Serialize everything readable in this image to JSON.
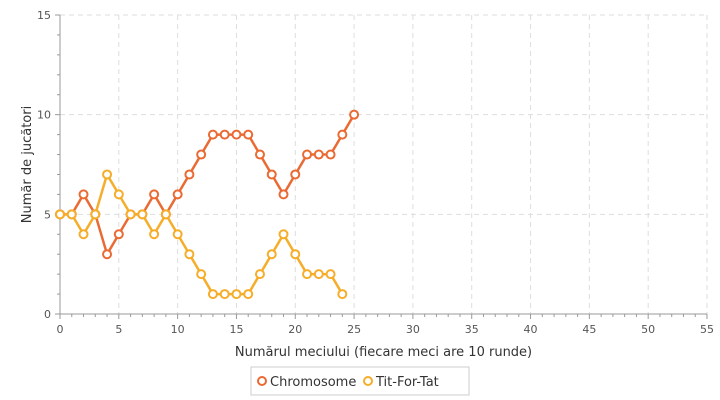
{
  "chart_data": {
    "type": "line",
    "title": "",
    "xlabel": "Numărul meciului (fiecare meci are 10 runde)",
    "ylabel": "Număr de jucători",
    "xlim": [
      0,
      55
    ],
    "ylim": [
      0,
      15
    ],
    "x_ticks": [
      "0",
      "5",
      "10",
      "15",
      "20",
      "25",
      "30",
      "35",
      "40",
      "45",
      "50",
      "55"
    ],
    "y_ticks": [
      "0",
      "5",
      "10",
      "15"
    ],
    "grid": true,
    "legend_position": "bottom-center",
    "series": [
      {
        "name": "Chromosome",
        "color": "#ea6a33",
        "x": [
          0,
          1,
          2,
          3,
          4,
          5,
          6,
          7,
          8,
          9,
          10,
          11,
          12,
          13,
          14,
          15,
          16,
          17,
          18,
          19,
          20,
          21,
          22,
          23,
          24,
          25
        ],
        "y": [
          5,
          5,
          6,
          5,
          3,
          4,
          5,
          5,
          6,
          5,
          6,
          7,
          8,
          9,
          9,
          9,
          9,
          8,
          7,
          6,
          7,
          8,
          8,
          8,
          9,
          10
        ]
      },
      {
        "name": "Tit-For-Tat",
        "color": "#f5ad2a",
        "x": [
          0,
          1,
          2,
          3,
          4,
          5,
          6,
          7,
          8,
          9,
          10,
          11,
          12,
          13,
          14,
          15,
          16,
          17,
          18,
          19,
          20,
          21,
          22,
          23,
          24
        ],
        "y": [
          5,
          5,
          4,
          5,
          7,
          6,
          5,
          5,
          4,
          5,
          4,
          3,
          2,
          1,
          1,
          1,
          1,
          2,
          3,
          4,
          3,
          2,
          2,
          2,
          1
        ]
      }
    ]
  }
}
